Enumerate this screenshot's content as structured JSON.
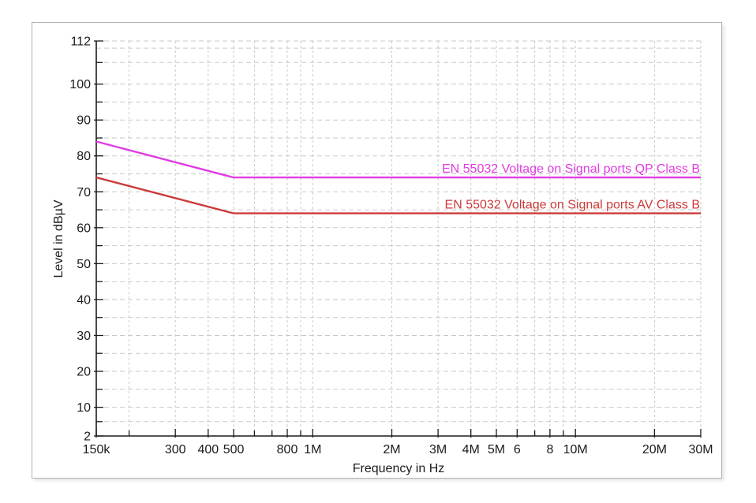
{
  "colors": {
    "background": "#ffffff",
    "frame_border": "#b3b3b3",
    "axis": "#1b1b1b",
    "grid": "#c9c9c9",
    "qp_line": "#e23ae2",
    "av_line": "#cc3a3a"
  },
  "chart_data": {
    "type": "line",
    "title": "",
    "xlabel": "Frequency in Hz",
    "ylabel": "Level in dBµV",
    "grid": "dashed",
    "x_axis": {
      "scale": "log",
      "min_hz": 150000,
      "max_hz": 30000000,
      "ticks": [
        {
          "hz": 150000,
          "label": "150k"
        },
        {
          "hz": 200000
        },
        {
          "hz": 300000,
          "label": "300"
        },
        {
          "hz": 400000,
          "label": "400"
        },
        {
          "hz": 500000,
          "label": "500"
        },
        {
          "hz": 600000
        },
        {
          "hz": 700000
        },
        {
          "hz": 800000,
          "label": "800"
        },
        {
          "hz": 900000
        },
        {
          "hz": 1000000,
          "label": "1M"
        },
        {
          "hz": 2000000,
          "label": "2M"
        },
        {
          "hz": 3000000,
          "label": "3M"
        },
        {
          "hz": 4000000,
          "label": "4M"
        },
        {
          "hz": 5000000,
          "label": "5M"
        },
        {
          "hz": 6000000,
          "label": "6"
        },
        {
          "hz": 7000000
        },
        {
          "hz": 8000000,
          "label": "8"
        },
        {
          "hz": 9000000
        },
        {
          "hz": 10000000,
          "label": "10M"
        },
        {
          "hz": 20000000,
          "label": "20M"
        },
        {
          "hz": 30000000,
          "label": "30M"
        }
      ]
    },
    "y_axis": {
      "min": 2,
      "max": 112,
      "labeled_ticks": [
        {
          "value": 112,
          "label": "112"
        },
        {
          "value": 100,
          "label": "100"
        },
        {
          "value": 90,
          "label": "90"
        },
        {
          "value": 80,
          "label": "80"
        },
        {
          "value": 70,
          "label": "70"
        },
        {
          "value": 60,
          "label": "60"
        },
        {
          "value": 50,
          "label": "50"
        },
        {
          "value": 40,
          "label": "40"
        },
        {
          "value": 30,
          "label": "30"
        },
        {
          "value": 20,
          "label": "20"
        },
        {
          "value": 10,
          "label": "10"
        },
        {
          "value": 2,
          "label": "2"
        }
      ],
      "minor_ticks": [
        106,
        95,
        85,
        75,
        65,
        55,
        45,
        35,
        25,
        15,
        6
      ],
      "gridline_values": [
        112,
        110,
        106,
        100,
        95,
        90,
        85,
        80,
        75,
        70,
        65,
        60,
        55,
        50,
        45,
        40,
        35,
        30,
        25,
        20,
        15,
        10,
        6
      ]
    },
    "series": [
      {
        "id": "qp",
        "name": "EN 55032 Voltage on Signal ports QP Class B",
        "color": "#e23ae2",
        "points": [
          {
            "hz": 150000,
            "dbuv": 84
          },
          {
            "hz": 500000,
            "dbuv": 74
          },
          {
            "hz": 30000000,
            "dbuv": 74
          }
        ]
      },
      {
        "id": "av",
        "name": "EN 55032 Voltage on Signal ports AV Class B",
        "color": "#cc3a3a",
        "points": [
          {
            "hz": 150000,
            "dbuv": 74
          },
          {
            "hz": 500000,
            "dbuv": 64
          },
          {
            "hz": 30000000,
            "dbuv": 64
          }
        ]
      }
    ],
    "series_label_placement": "right-aligned-above-line",
    "legend_position": "on-chart-right"
  }
}
